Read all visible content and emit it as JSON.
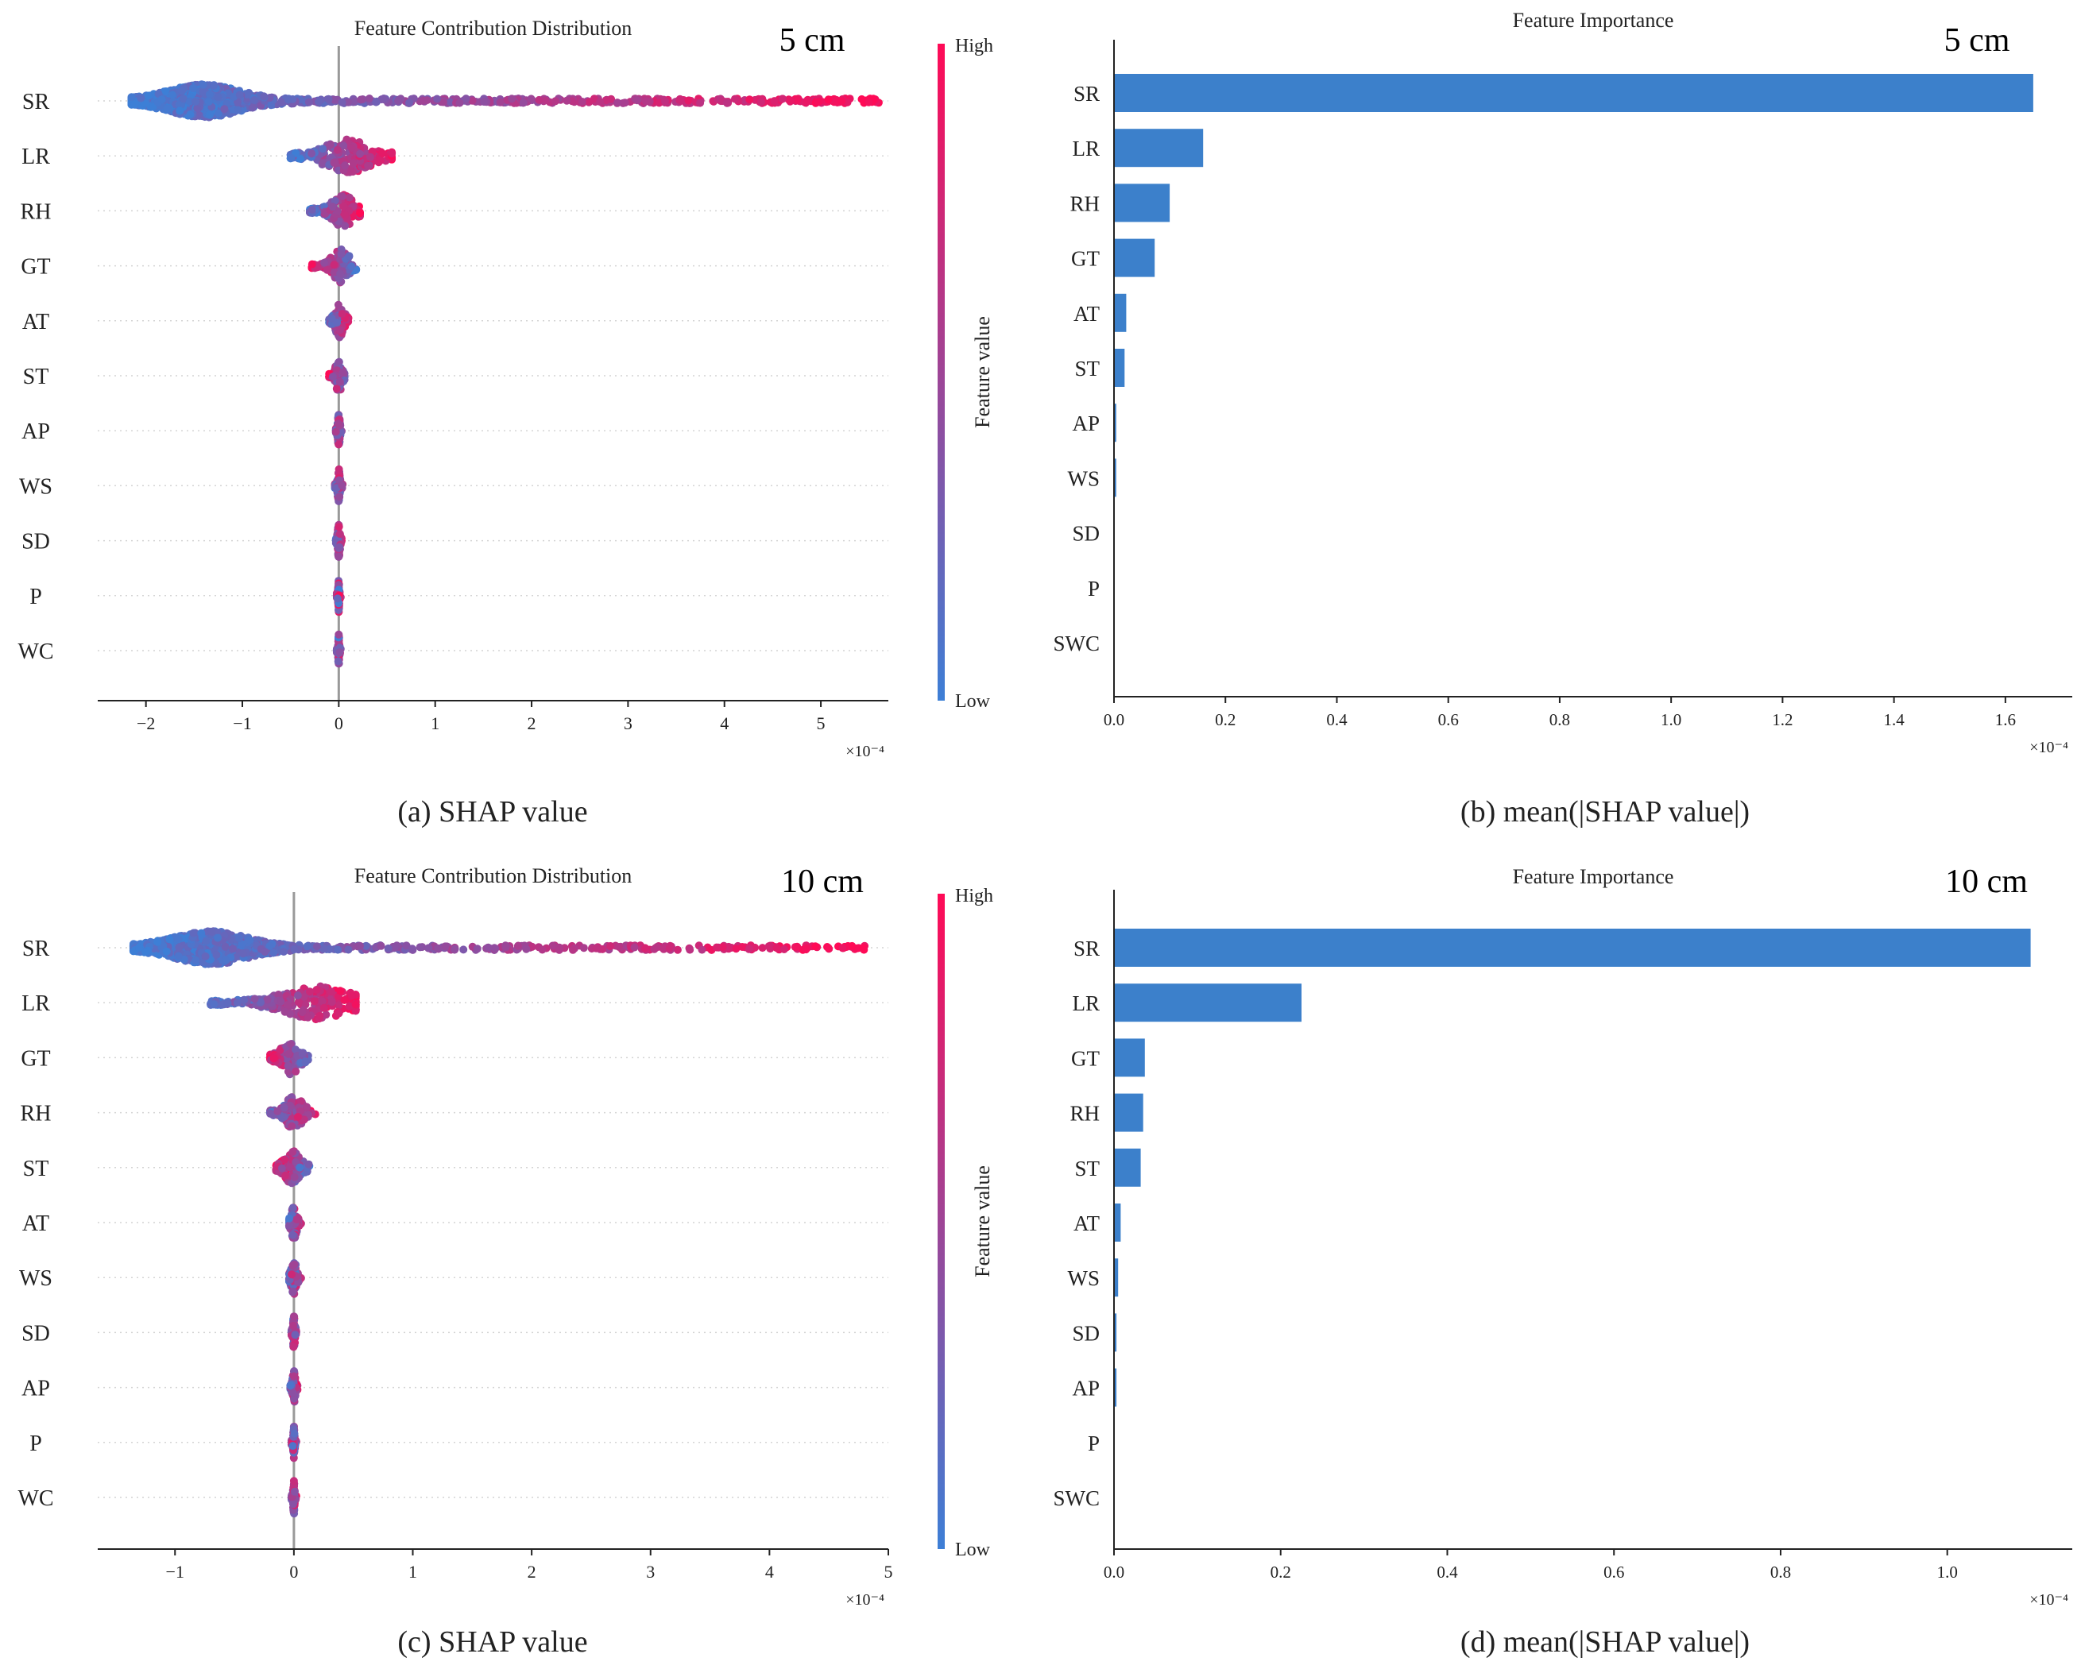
{
  "colors": {
    "shap_low": "#3d7fd6",
    "shap_high": "#ff0a56",
    "bar": "#3c80cb",
    "axis": "#222222",
    "grid": "#d4d4d4",
    "zero_line": "#999999"
  },
  "captions": {
    "a": "(a) SHAP value",
    "b": "(b) mean(|SHAP value|)",
    "c": "(c) SHAP value",
    "d": "(d) mean(|SHAP value|)"
  },
  "chart_data": [
    {
      "id": "a",
      "type": "scatter",
      "subtype": "shap-beeswarm",
      "title": "Feature Contribution Distribution",
      "depth_label": "5 cm",
      "features": [
        "SR",
        "LR",
        "RH",
        "GT",
        "AT",
        "ST",
        "AP",
        "WS",
        "SD",
        "P",
        "WC"
      ],
      "xlim": [
        -2.5,
        5.7
      ],
      "xticks": [
        -2,
        -1,
        0,
        1,
        2,
        3,
        4,
        5
      ],
      "xtick_labels": [
        "−2",
        "−1",
        "0",
        "1",
        "2",
        "3",
        "4",
        "5"
      ],
      "x_multiplier": "×10⁻⁴",
      "colorbar": {
        "label": "Feature value",
        "high": "High",
        "low": "Low"
      },
      "distributions": [
        {
          "feature": "SR",
          "min": -2.15,
          "max": 5.6,
          "mode": -1.4,
          "spread": 0.35,
          "rank_corr": 0.95
        },
        {
          "feature": "LR",
          "min": -0.5,
          "max": 0.55,
          "mode": 0.1,
          "spread": 0.22,
          "rank_corr": 0.8
        },
        {
          "feature": "RH",
          "min": -0.3,
          "max": 0.22,
          "mode": 0.05,
          "spread": 0.1,
          "rank_corr": 0.7
        },
        {
          "feature": "GT",
          "min": -0.28,
          "max": 0.18,
          "mode": 0.02,
          "spread": 0.08,
          "rank_corr": -0.7
        },
        {
          "feature": "AT",
          "min": -0.1,
          "max": 0.1,
          "mode": 0.01,
          "spread": 0.04,
          "rank_corr": 0.6
        },
        {
          "feature": "ST",
          "min": -0.1,
          "max": 0.06,
          "mode": 0.0,
          "spread": 0.03,
          "rank_corr": -0.6
        },
        {
          "feature": "AP",
          "min": -0.03,
          "max": 0.03,
          "mode": 0.0,
          "spread": 0.01,
          "rank_corr": 0.3
        },
        {
          "feature": "WS",
          "min": -0.04,
          "max": 0.04,
          "mode": 0.0,
          "spread": 0.01,
          "rank_corr": 0.2
        },
        {
          "feature": "SD",
          "min": -0.03,
          "max": 0.03,
          "mode": 0.0,
          "spread": 0.01,
          "rank_corr": 0.6
        },
        {
          "feature": "P",
          "min": -0.02,
          "max": 0.02,
          "mode": 0.0,
          "spread": 0.005,
          "rank_corr": 0.0
        },
        {
          "feature": "WC",
          "min": -0.02,
          "max": 0.02,
          "mode": 0.0,
          "spread": 0.005,
          "rank_corr": 0.1
        }
      ]
    },
    {
      "id": "b",
      "type": "bar",
      "orientation": "horizontal",
      "title": "Feature Importance",
      "depth_label": "5 cm",
      "categories": [
        "SR",
        "LR",
        "RH",
        "GT",
        "AT",
        "ST",
        "AP",
        "WS",
        "SD",
        "P",
        "SWC"
      ],
      "values": [
        1.65,
        0.16,
        0.1,
        0.073,
        0.022,
        0.019,
        0.004,
        0.004,
        0.0,
        0.0,
        0.0
      ],
      "xlim": [
        0,
        1.72
      ],
      "xticks": [
        0.0,
        0.2,
        0.4,
        0.6,
        0.8,
        1.0,
        1.2,
        1.4,
        1.6
      ],
      "xtick_labels": [
        "0.0",
        "0.2",
        "0.4",
        "0.6",
        "0.8",
        "1.0",
        "1.2",
        "1.4",
        "1.6"
      ],
      "x_multiplier": "×10⁻⁴"
    },
    {
      "id": "c",
      "type": "scatter",
      "subtype": "shap-beeswarm",
      "title": "Feature Contribution Distribution",
      "depth_label": "10 cm",
      "features": [
        "SR",
        "LR",
        "GT",
        "RH",
        "ST",
        "AT",
        "WS",
        "SD",
        "AP",
        "P",
        "WC"
      ],
      "xlim": [
        -1.65,
        5.0
      ],
      "xticks": [
        -1,
        0,
        1,
        2,
        3,
        4,
        5
      ],
      "xtick_labels": [
        "−1",
        "0",
        "1",
        "2",
        "3",
        "4",
        "5"
      ],
      "x_multiplier": "×10⁻⁴",
      "colorbar": {
        "label": "Feature value",
        "high": "High",
        "low": "Low"
      },
      "distributions": [
        {
          "feature": "SR",
          "min": -1.35,
          "max": 4.8,
          "mode": -0.7,
          "spread": 0.3,
          "rank_corr": 0.95
        },
        {
          "feature": "LR",
          "min": -0.7,
          "max": 0.52,
          "mode": 0.2,
          "spread": 0.25,
          "rank_corr": 0.85
        },
        {
          "feature": "GT",
          "min": -0.2,
          "max": 0.12,
          "mode": -0.03,
          "spread": 0.07,
          "rank_corr": -0.7
        },
        {
          "feature": "RH",
          "min": -0.2,
          "max": 0.18,
          "mode": 0.0,
          "spread": 0.07,
          "rank_corr": 0.6
        },
        {
          "feature": "ST",
          "min": -0.15,
          "max": 0.13,
          "mode": -0.01,
          "spread": 0.06,
          "rank_corr": -0.6
        },
        {
          "feature": "AT",
          "min": -0.04,
          "max": 0.06,
          "mode": 0.0,
          "spread": 0.02,
          "rank_corr": 0.5
        },
        {
          "feature": "WS",
          "min": -0.04,
          "max": 0.06,
          "mode": 0.0,
          "spread": 0.02,
          "rank_corr": 0.4
        },
        {
          "feature": "SD",
          "min": -0.02,
          "max": 0.02,
          "mode": 0.0,
          "spread": 0.008,
          "rank_corr": 0.2
        },
        {
          "feature": "AP",
          "min": -0.03,
          "max": 0.03,
          "mode": 0.0,
          "spread": 0.01,
          "rank_corr": 0.5
        },
        {
          "feature": "P",
          "min": -0.02,
          "max": 0.02,
          "mode": 0.0,
          "spread": 0.005,
          "rank_corr": 0.0
        },
        {
          "feature": "WC",
          "min": -0.02,
          "max": 0.02,
          "mode": 0.0,
          "spread": 0.006,
          "rank_corr": 0.4
        }
      ]
    },
    {
      "id": "d",
      "type": "bar",
      "orientation": "horizontal",
      "title": "Feature Importance",
      "depth_label": "10 cm",
      "categories": [
        "SR",
        "LR",
        "GT",
        "RH",
        "ST",
        "AT",
        "WS",
        "SD",
        "AP",
        "P",
        "SWC"
      ],
      "values": [
        1.1,
        0.225,
        0.037,
        0.035,
        0.032,
        0.008,
        0.005,
        0.003,
        0.003,
        0.0,
        0.0
      ],
      "xlim": [
        0,
        1.15
      ],
      "xticks": [
        0.0,
        0.2,
        0.4,
        0.6,
        0.8,
        1.0
      ],
      "xtick_labels": [
        "0.0",
        "0.2",
        "0.4",
        "0.6",
        "0.8",
        "1.0"
      ],
      "x_multiplier": "×10⁻⁴"
    }
  ]
}
